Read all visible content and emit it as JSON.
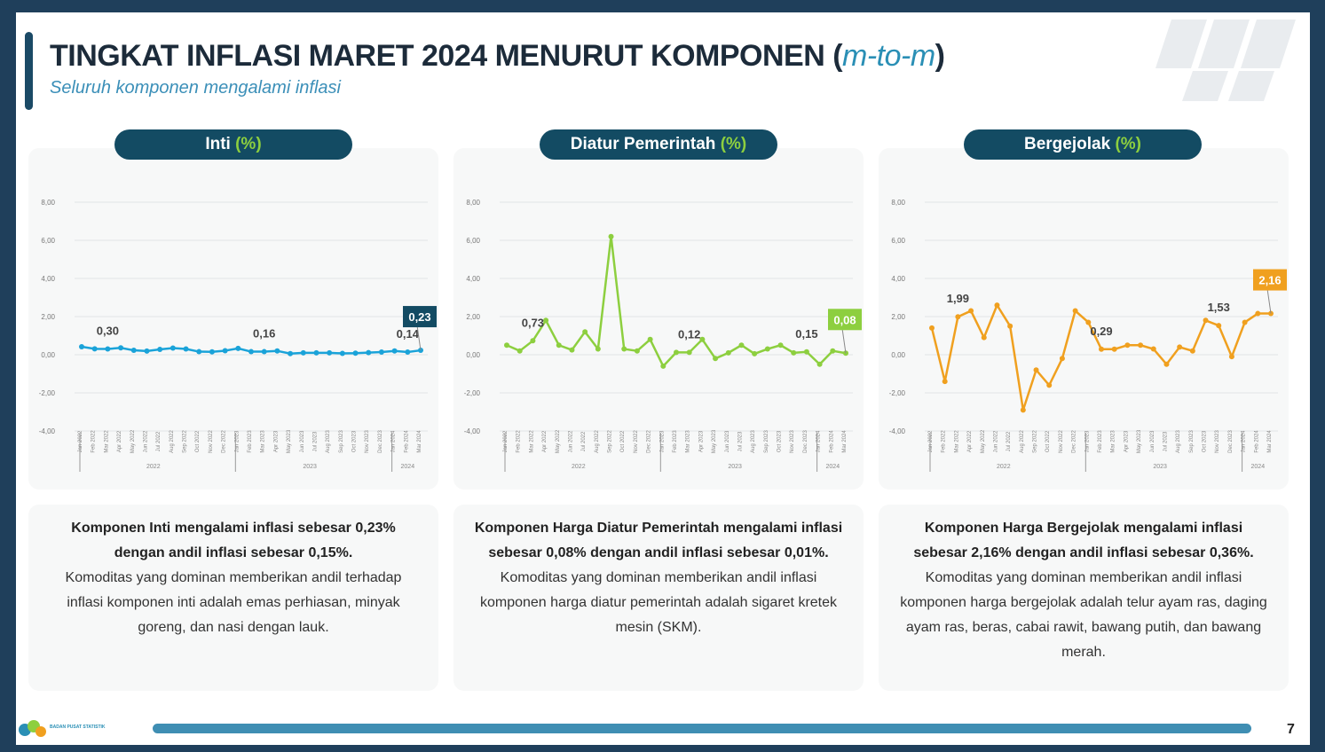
{
  "header": {
    "title_main": "TINGKAT INFLASI MARET 2024 MENURUT KOMPONEN (",
    "title_ital": "m-to-m",
    "title_end": ")",
    "subtitle": "Seluruh komponen mengalami inflasi"
  },
  "panels": [
    {
      "label": "Inti ",
      "unit": "(%)"
    },
    {
      "label": "Diatur Pemerintah ",
      "unit": "(%)"
    },
    {
      "label": "Bergejolak ",
      "unit": "(%)"
    }
  ],
  "descriptions": [
    {
      "bold": "Komponen Inti mengalami inflasi sebesar 0,23% dengan andil inflasi sebesar 0,15%.",
      "text": "Komoditas yang dominan memberikan andil terhadap inflasi komponen inti adalah emas perhiasan, minyak goreng, dan nasi dengan lauk."
    },
    {
      "bold": "Komponen Harga Diatur Pemerintah mengalami inflasi sebesar 0,08% dengan andil inflasi sebesar 0,01%.",
      "text": "Komoditas yang dominan memberikan andil inflasi komponen harga diatur pemerintah adalah sigaret kretek mesin (SKM)."
    },
    {
      "bold": "Komponen Harga Bergejolak mengalami inflasi sebesar 2,16% dengan andil inflasi sebesar 0,36%.",
      "text": "Komoditas yang dominan memberikan andil inflasi komponen harga bergejolak adalah telur ayam ras, daging ayam ras, beras, cabai rawit, bawang putih, dan bawang merah."
    }
  ],
  "footer": {
    "org": "BADAN PUSAT STATISTIK",
    "page": "7"
  },
  "chart_data": [
    {
      "type": "line",
      "title": "Inti (%)",
      "color": "#1aa3d9",
      "ylim": [
        -4,
        8
      ],
      "yticks": [
        "8,00",
        "6,00",
        "4,00",
        "2,00",
        "0,00",
        "-2,00",
        "-4,00"
      ],
      "years": [
        "2022",
        "2023",
        "2024"
      ],
      "x": [
        "Jan 2022",
        "Feb 2022",
        "Mar 2022",
        "Apr 2022",
        "May 2022",
        "Jun 2022",
        "Jul 2022",
        "Aug 2022",
        "Sep 2022",
        "Oct 2022",
        "Nov 2022",
        "Dec 2022",
        "Jan 2023",
        "Feb 2023",
        "Mar 2023",
        "Apr 2023",
        "May 2023",
        "Jun 2023",
        "Jul 2023",
        "Aug 2023",
        "Sep 2023",
        "Oct 2023",
        "Nov 2023",
        "Dec 2023",
        "Jan 2024",
        "Feb 2024",
        "Mar 2024"
      ],
      "values": [
        0.42,
        0.31,
        0.3,
        0.36,
        0.23,
        0.19,
        0.28,
        0.35,
        0.3,
        0.16,
        0.15,
        0.21,
        0.33,
        0.16,
        0.16,
        0.2,
        0.06,
        0.1,
        0.1,
        0.1,
        0.07,
        0.08,
        0.11,
        0.14,
        0.2,
        0.14,
        0.23
      ],
      "labels": [
        {
          "i": 2,
          "text": "0,30"
        },
        {
          "i": 14,
          "text": "0,16"
        },
        {
          "i": 25,
          "text": "0,14"
        }
      ],
      "last_label": "0,23"
    },
    {
      "type": "line",
      "title": "Diatur Pemerintah (%)",
      "color": "#8dcf3f",
      "ylim": [
        -4,
        8
      ],
      "yticks": [
        "8,00",
        "6,00",
        "4,00",
        "2,00",
        "0,00",
        "-2,00",
        "-4,00"
      ],
      "years": [
        "2022",
        "2023",
        "2024"
      ],
      "x": [
        "Jan 2022",
        "Feb 2022",
        "Mar 2022",
        "Apr 2022",
        "May 2022",
        "Jun 2022",
        "Jul 2022",
        "Aug 2022",
        "Sep 2022",
        "Oct 2022",
        "Nov 2022",
        "Dec 2022",
        "Jan 2023",
        "Feb 2023",
        "Mar 2023",
        "Apr 2023",
        "May 2023",
        "Jun 2023",
        "Jul 2023",
        "Aug 2023",
        "Sep 2023",
        "Oct 2023",
        "Nov 2023",
        "Dec 2023",
        "Jan 2024",
        "Feb 2024",
        "Mar 2024"
      ],
      "values": [
        0.5,
        0.2,
        0.73,
        1.8,
        0.5,
        0.25,
        1.2,
        0.3,
        6.2,
        0.3,
        0.2,
        0.8,
        -0.6,
        0.12,
        0.12,
        0.8,
        -0.2,
        0.1,
        0.5,
        0.05,
        0.3,
        0.5,
        0.1,
        0.15,
        -0.5,
        0.2,
        0.08
      ],
      "labels": [
        {
          "i": 2,
          "text": "0,73"
        },
        {
          "i": 14,
          "text": "0,12"
        },
        {
          "i": 23,
          "text": "0,15"
        }
      ],
      "last_label": "0,08"
    },
    {
      "type": "line",
      "title": "Bergejolak (%)",
      "color": "#f0a01f",
      "ylim": [
        -4,
        8
      ],
      "yticks": [
        "8,00",
        "6,00",
        "4,00",
        "2,00",
        "0,00",
        "-2,00",
        "-4,00"
      ],
      "years": [
        "2022",
        "2023",
        "2024"
      ],
      "x": [
        "Jan 2022",
        "Feb 2022",
        "Mar 2022",
        "Apr 2022",
        "May 2022",
        "Jun 2022",
        "Jul 2022",
        "Aug 2022",
        "Sep 2022",
        "Oct 2022",
        "Nov 2022",
        "Dec 2022",
        "Jan 2023",
        "Feb 2023",
        "Mar 2023",
        "Apr 2023",
        "May 2023",
        "Jun 2023",
        "Jul 2023",
        "Aug 2023",
        "Sep 2023",
        "Oct 2023",
        "Nov 2023",
        "Dec 2023",
        "Jan 2024",
        "Feb 2024",
        "Mar 2024"
      ],
      "values": [
        1.4,
        -1.4,
        1.99,
        2.3,
        0.9,
        2.6,
        1.5,
        -2.9,
        -0.8,
        -1.6,
        -0.2,
        2.3,
        1.7,
        0.29,
        0.29,
        0.5,
        0.5,
        0.3,
        -0.5,
        0.4,
        0.2,
        1.8,
        1.53,
        -0.1,
        1.7,
        2.16,
        2.16
      ],
      "labels": [
        {
          "i": 2,
          "text": "1,99"
        },
        {
          "i": 13,
          "text": "0,29"
        },
        {
          "i": 22,
          "text": "1,53"
        }
      ],
      "last_label": "2,16"
    }
  ]
}
